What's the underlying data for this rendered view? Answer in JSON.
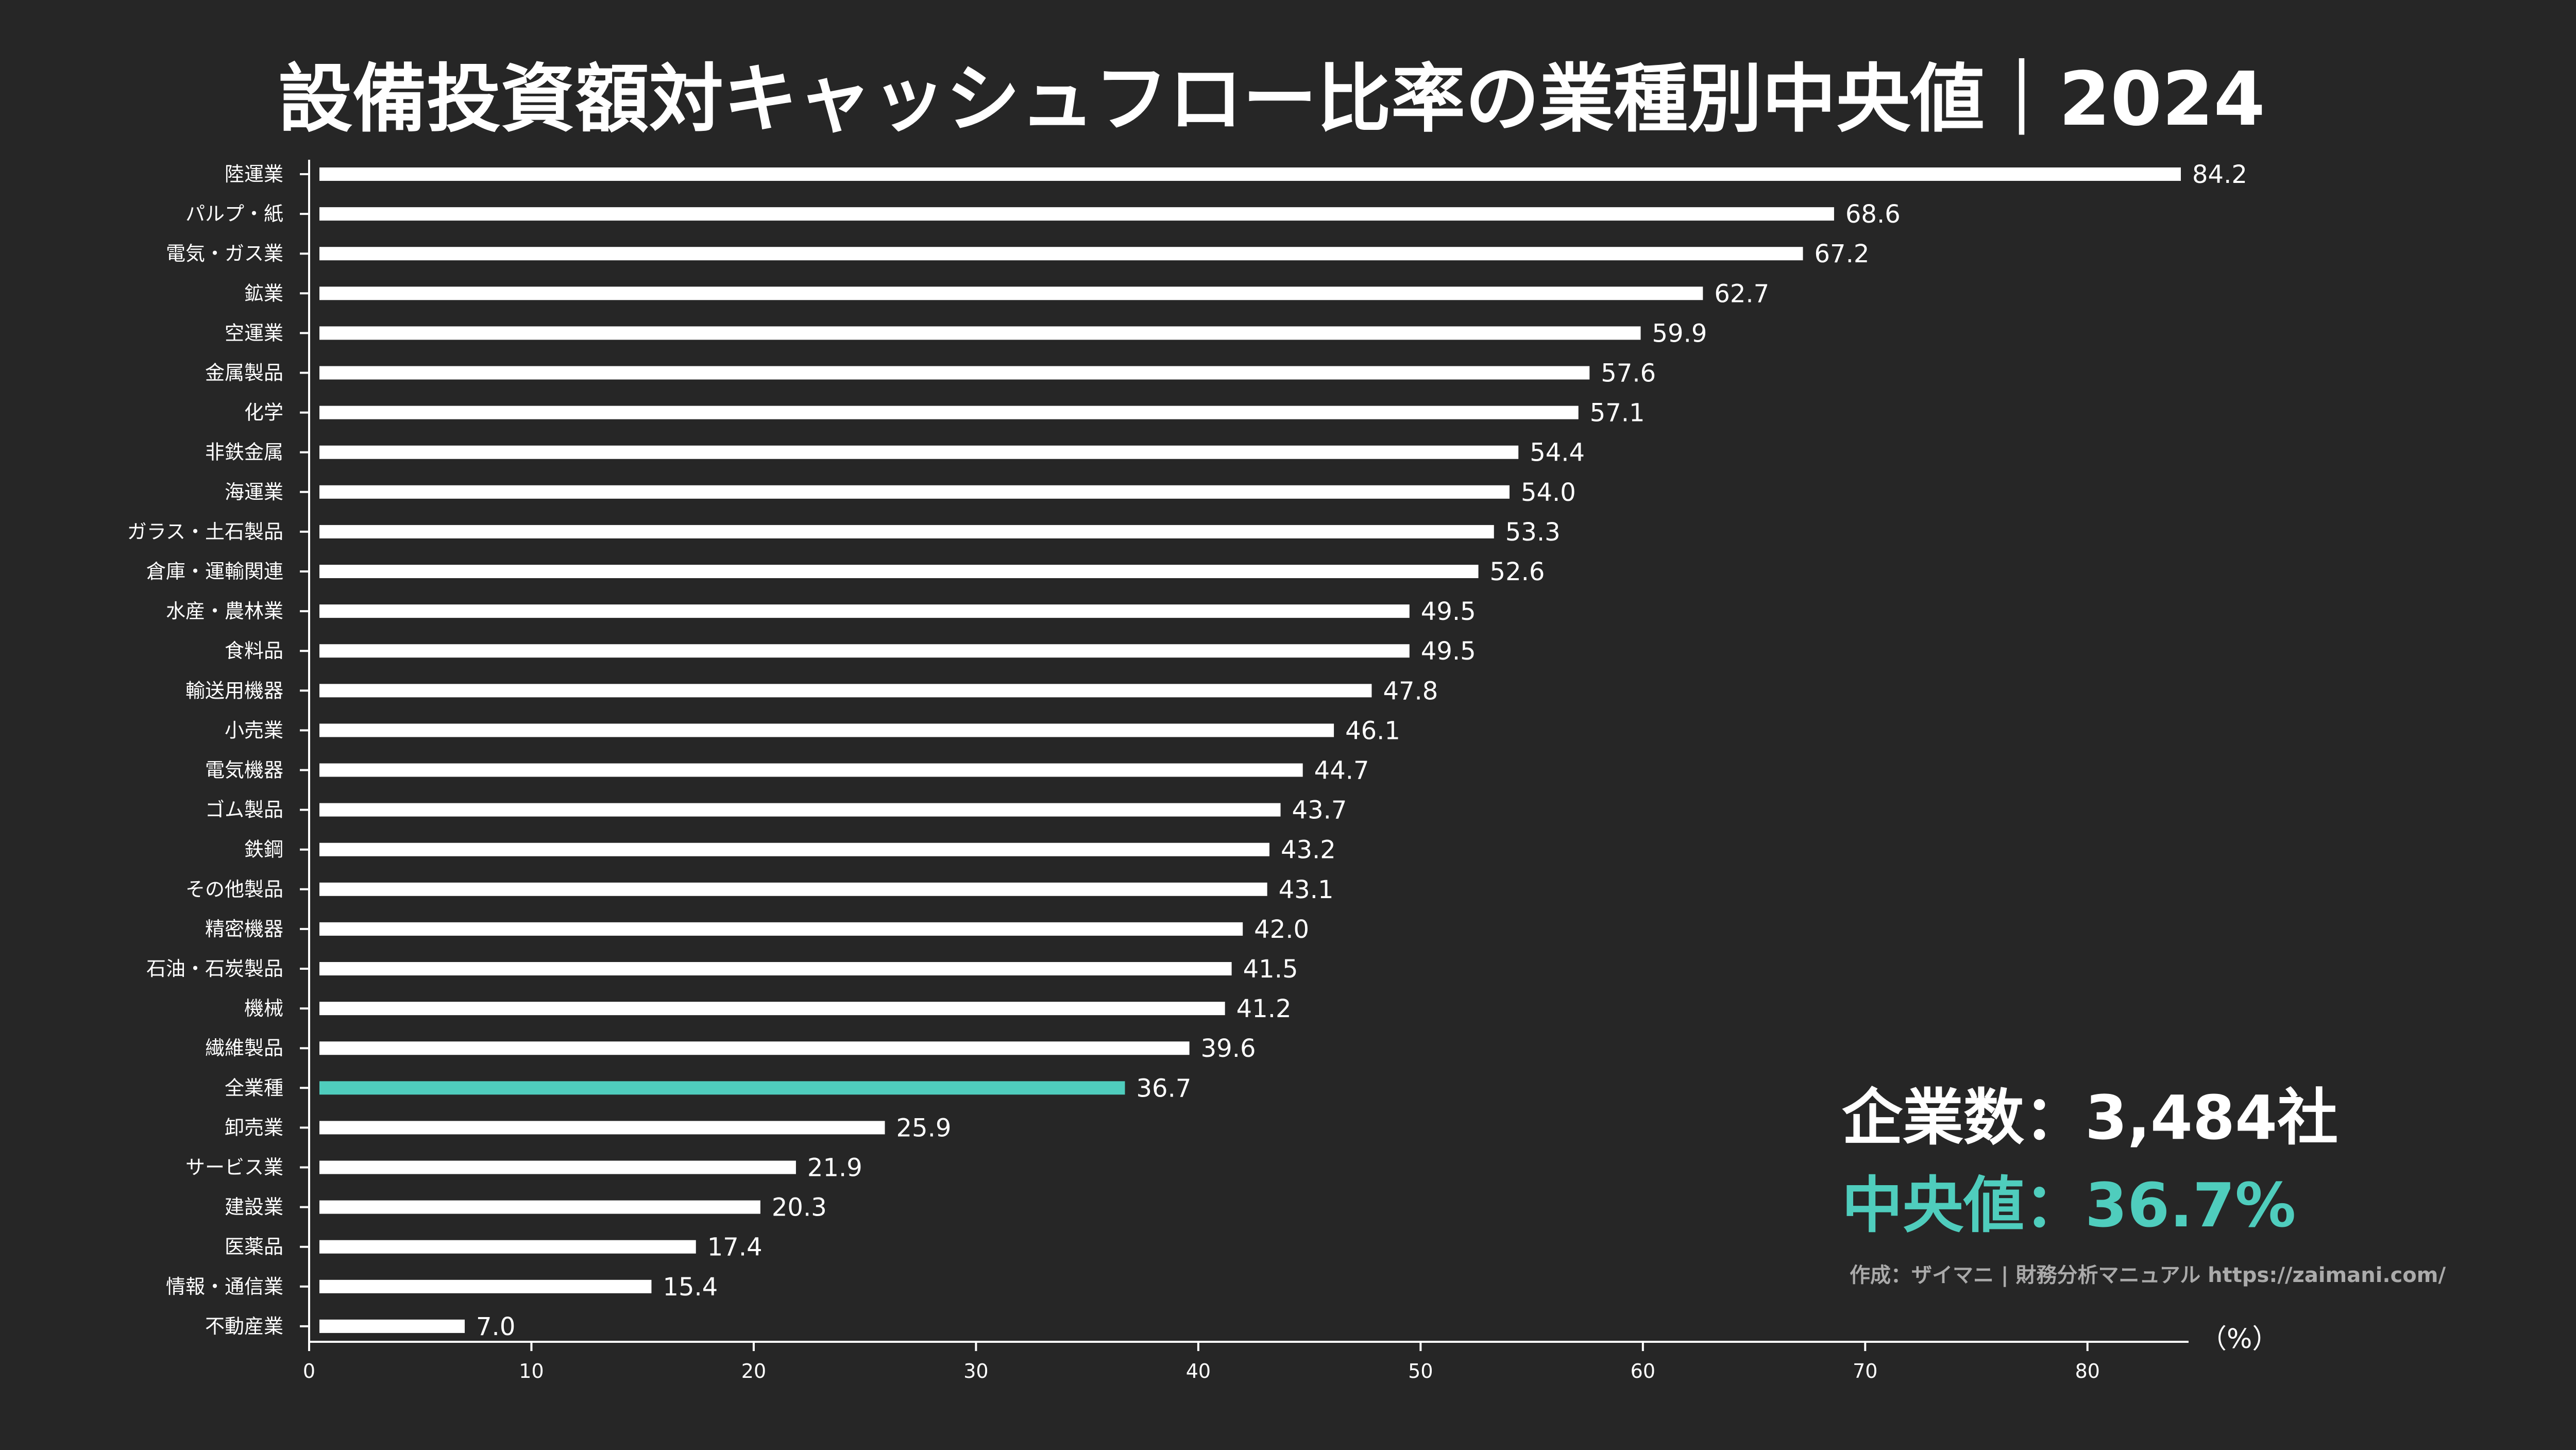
{
  "colors": {
    "background": "#262626",
    "bar": "#ffffff",
    "highlight": "#4fcdbd",
    "credit": "#aaaaaa"
  },
  "chart_data": {
    "type": "bar",
    "orientation": "horizontal",
    "title": "設備投資額対キャッシュフロー比率の業種別中央値｜2024",
    "xlabel": "",
    "unit_label": "（%）",
    "ylabel": "",
    "xlim": [
      0,
      84.2
    ],
    "xticks": [
      0,
      10,
      20,
      30,
      40,
      50,
      60,
      70,
      80
    ],
    "grid": false,
    "highlight_category": "全業種",
    "categories": [
      "陸運業",
      "パルプ・紙",
      "電気・ガス業",
      "鉱業",
      "空運業",
      "金属製品",
      "化学",
      "非鉄金属",
      "海運業",
      "ガラス・土石製品",
      "倉庫・運輸関連",
      "水産・農林業",
      "食料品",
      "輸送用機器",
      "小売業",
      "電気機器",
      "ゴム製品",
      "鉄鋼",
      "その他製品",
      "精密機器",
      "石油・石炭製品",
      "機械",
      "繊維製品",
      "全業種",
      "卸売業",
      "サービス業",
      "建設業",
      "医薬品",
      "情報・通信業",
      "不動産業"
    ],
    "values": [
      84.2,
      68.6,
      67.2,
      62.7,
      59.9,
      57.6,
      57.1,
      54.4,
      54.0,
      53.3,
      52.6,
      49.5,
      49.5,
      47.8,
      46.1,
      44.7,
      43.7,
      43.2,
      43.1,
      42.0,
      41.5,
      41.2,
      39.6,
      36.7,
      25.9,
      21.9,
      20.3,
      17.4,
      15.4,
      7.0
    ],
    "value_labels": [
      "84.2",
      "68.6",
      "67.2",
      "62.7",
      "59.9",
      "57.6",
      "57.1",
      "54.4",
      "54.0",
      "53.3",
      "52.6",
      "49.5",
      "49.5",
      "47.8",
      "46.1",
      "44.7",
      "43.7",
      "43.2",
      "43.1",
      "42.0",
      "41.5",
      "41.2",
      "39.6",
      "36.7",
      "25.9",
      "21.9",
      "20.3",
      "17.4",
      "15.4",
      "7.0"
    ]
  },
  "stats": {
    "company_count": "企業数：3,484社",
    "median": "中央値：36.7%"
  },
  "credit": "作成：ザイマニ | 財務分析マニュアル https://zaimani.com/"
}
